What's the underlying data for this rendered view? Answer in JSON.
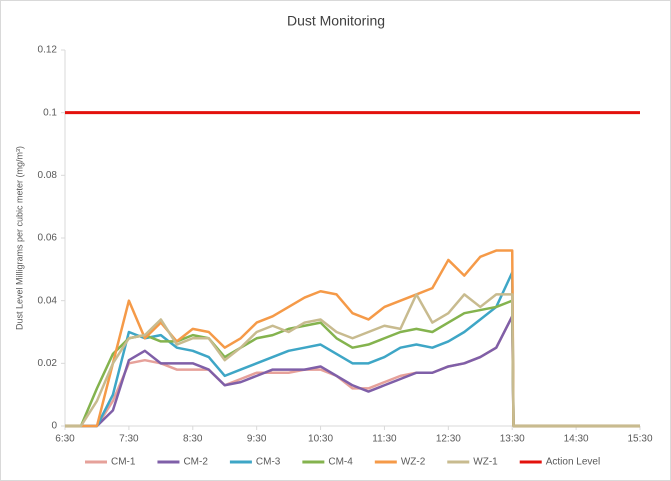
{
  "chart_data": {
    "type": "line",
    "title": "Dust Monitoring",
    "y_label": "Dust Level Milligrams per cubic meter (mg/m³)",
    "x": [
      6.5,
      6.75,
      7,
      7.25,
      7.5,
      7.75,
      8,
      8.25,
      8.5,
      8.75,
      9,
      9.25,
      9.5,
      9.75,
      10,
      10.25,
      10.5,
      10.75,
      11,
      11.25,
      11.5,
      11.75,
      12,
      12.25,
      12.5,
      12.75,
      13,
      13.25,
      13.5,
      13.52,
      14,
      14.5,
      15,
      15.5
    ],
    "xlim": [
      6.5,
      15.5
    ],
    "xticks": [
      {
        "value": 6.5,
        "label": "6:30"
      },
      {
        "value": 7.5,
        "label": "7:30"
      },
      {
        "value": 8.5,
        "label": "8:30"
      },
      {
        "value": 9.5,
        "label": "9:30"
      },
      {
        "value": 10.5,
        "label": "10:30"
      },
      {
        "value": 11.5,
        "label": "11:30"
      },
      {
        "value": 12.5,
        "label": "12:30"
      },
      {
        "value": 13.5,
        "label": "13:30"
      },
      {
        "value": 14.5,
        "label": "14:30"
      },
      {
        "value": 15.5,
        "label": "15:30"
      }
    ],
    "ylim": [
      0,
      0.12
    ],
    "yticks": [
      0,
      0.02,
      0.04,
      0.06,
      0.08,
      0.1,
      0.12
    ],
    "grid": false,
    "legend": "bottom",
    "series": [
      {
        "name": "CM-1",
        "color": "#e6a19a",
        "values": [
          0,
          0,
          0,
          0.008,
          0.02,
          0.021,
          0.02,
          0.018,
          0.018,
          0.018,
          0.013,
          0.015,
          0.017,
          0.017,
          0.017,
          0.018,
          0.018,
          0.016,
          0.012,
          0.012,
          0.014,
          0.016,
          0.017,
          0.017,
          0.019,
          0.02,
          0.022,
          0.025,
          0.035,
          0,
          0,
          0,
          0,
          0
        ]
      },
      {
        "name": "CM-2",
        "color": "#7f5fa8",
        "values": [
          0,
          0,
          0,
          0.005,
          0.021,
          0.024,
          0.02,
          0.02,
          0.02,
          0.018,
          0.013,
          0.014,
          0.016,
          0.018,
          0.018,
          0.018,
          0.019,
          0.016,
          0.013,
          0.011,
          0.013,
          0.015,
          0.017,
          0.017,
          0.019,
          0.02,
          0.022,
          0.025,
          0.035,
          0,
          0,
          0,
          0,
          0
        ]
      },
      {
        "name": "CM-3",
        "color": "#3ea6c6",
        "values": [
          0,
          0,
          0,
          0.01,
          0.03,
          0.028,
          0.029,
          0.025,
          0.024,
          0.022,
          0.016,
          0.018,
          0.02,
          0.022,
          0.024,
          0.025,
          0.026,
          0.023,
          0.02,
          0.02,
          0.022,
          0.025,
          0.026,
          0.025,
          0.027,
          0.03,
          0.034,
          0.038,
          0.049,
          0,
          0,
          0,
          0,
          0
        ]
      },
      {
        "name": "CM-4",
        "color": "#84b34e",
        "values": [
          0,
          0,
          0.012,
          0.023,
          0.028,
          0.029,
          0.027,
          0.027,
          0.029,
          0.028,
          0.022,
          0.025,
          0.028,
          0.029,
          0.031,
          0.032,
          0.033,
          0.028,
          0.025,
          0.026,
          0.028,
          0.03,
          0.031,
          0.03,
          0.033,
          0.036,
          0.037,
          0.038,
          0.04,
          0,
          0,
          0,
          0,
          0
        ]
      },
      {
        "name": "WZ-2",
        "color": "#f59a48",
        "values": [
          0,
          0,
          0,
          0.02,
          0.04,
          0.028,
          0.033,
          0.027,
          0.031,
          0.03,
          0.025,
          0.028,
          0.033,
          0.035,
          0.038,
          0.041,
          0.043,
          0.042,
          0.036,
          0.034,
          0.038,
          0.04,
          0.042,
          0.044,
          0.053,
          0.048,
          0.054,
          0.056,
          0.056,
          0,
          0,
          0,
          0,
          0
        ]
      },
      {
        "name": "WZ-1",
        "color": "#c8bb8f",
        "values": [
          0,
          0,
          0.008,
          0.02,
          0.028,
          0.029,
          0.034,
          0.026,
          0.028,
          0.028,
          0.021,
          0.025,
          0.03,
          0.032,
          0.03,
          0.033,
          0.034,
          0.03,
          0.028,
          0.03,
          0.032,
          0.031,
          0.042,
          0.033,
          0.036,
          0.042,
          0.038,
          0.042,
          0.042,
          0,
          0,
          0,
          0,
          0
        ]
      },
      {
        "name": "Action Level",
        "color": "#e3110c",
        "values": [
          0.1,
          0.1,
          0.1,
          0.1,
          0.1,
          0.1,
          0.1,
          0.1,
          0.1,
          0.1,
          0.1,
          0.1,
          0.1,
          0.1,
          0.1,
          0.1,
          0.1,
          0.1,
          0.1,
          0.1,
          0.1,
          0.1,
          0.1,
          0.1,
          0.1,
          0.1,
          0.1,
          0.1,
          0.1,
          0.1,
          0.1,
          0.1,
          0.1,
          0.1
        ]
      }
    ]
  }
}
